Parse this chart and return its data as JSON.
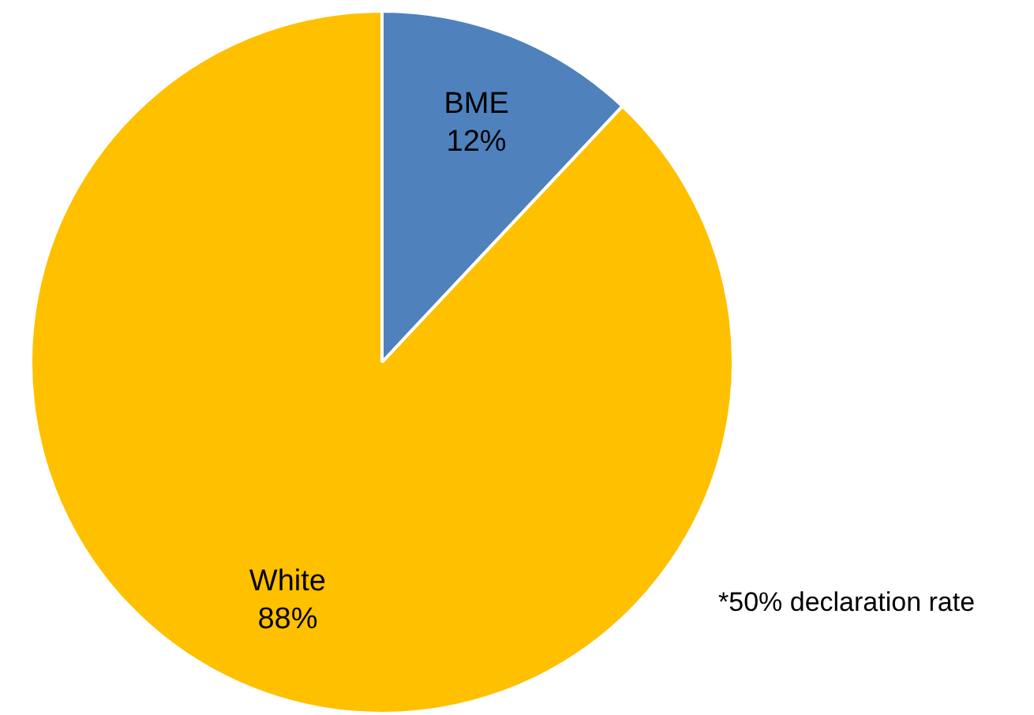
{
  "chart_data": {
    "type": "pie",
    "categories": [
      "BME",
      "White"
    ],
    "values": [
      12,
      88
    ],
    "colors": [
      "#4f81bd",
      "#ffc000"
    ],
    "value_labels": [
      "12%",
      "88%"
    ],
    "legend": false,
    "annotations": [
      "*50% declaration rate"
    ]
  }
}
